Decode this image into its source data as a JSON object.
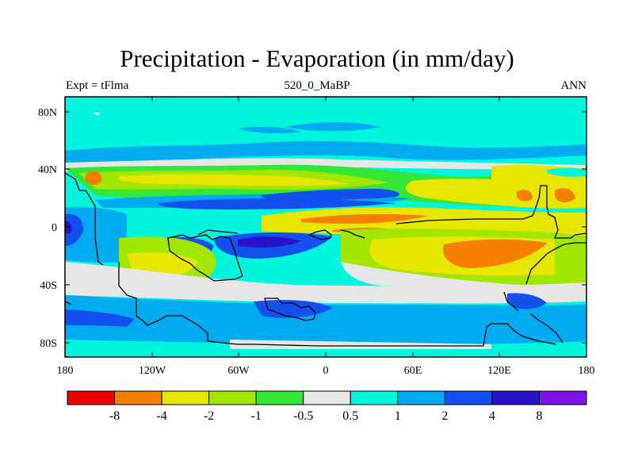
{
  "title": "Precipitation - Evaporation (in mm/day)",
  "subtitle_left": "Expt = tFlma",
  "subtitle_center": "520_0_MaBP",
  "subtitle_right": "ANN",
  "lat_labels": [
    "80N",
    "40N",
    "0",
    "40S",
    "80S"
  ],
  "lon_labels": [
    "180",
    "120W",
    "60W",
    "0",
    "60E",
    "120E",
    "180"
  ],
  "colorbar": {
    "colors": [
      "#ee0000",
      "#f57f00",
      "#e6e600",
      "#a2e600",
      "#36e636",
      "#e6e6e6",
      "#00f5dc",
      "#00aaee",
      "#1450ee",
      "#2814c8",
      "#7d14e6"
    ],
    "labels": [
      "-8",
      "-4",
      "-2",
      "-1",
      "-0.5",
      "0.5",
      "1",
      "2",
      "4",
      "8"
    ]
  },
  "colors": {
    "ocean_bg": "#00f5dc",
    "land_bg": "#e6e6e6"
  }
}
